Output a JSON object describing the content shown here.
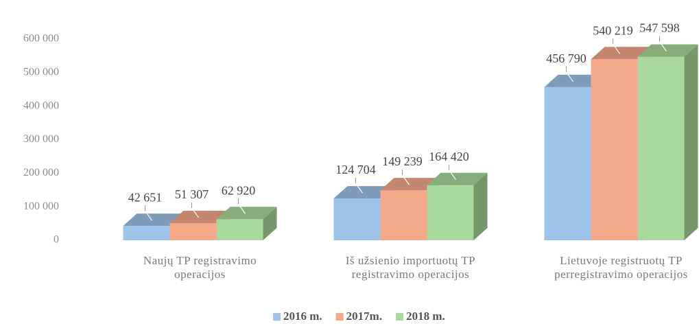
{
  "chart_data": {
    "type": "bar3d",
    "categories": [
      "Naujų TP registravimo operacijos",
      "Iš užsienio importuotų TP registravimo operacijos",
      "Lietuvoje registruotų TP perregistravimo operacijos"
    ],
    "series": [
      {
        "name": "2016 m.",
        "color": "#9ec3e8",
        "values": [
          42651,
          124704,
          456790
        ],
        "value_labels": [
          "42 651",
          "124 704",
          "456 790"
        ]
      },
      {
        "name": "2017m.",
        "color": "#f5a98a",
        "values": [
          51307,
          149239,
          540219
        ],
        "value_labels": [
          "51 307",
          "149 239",
          "540 219"
        ]
      },
      {
        "name": "2018 m.",
        "color": "#a8d89a",
        "values": [
          62920,
          164420,
          547598
        ],
        "value_labels": [
          "62 920",
          "164 420",
          "547 598"
        ]
      }
    ],
    "ylim": [
      0,
      600000
    ],
    "yticks": [
      0,
      {
        "value": 100000,
        "label": "100 000"
      },
      {
        "value": 200000,
        "label": "200 000"
      },
      {
        "value": 300000,
        "label": "300 000"
      },
      {
        "value": 400000,
        "label": "400 000"
      },
      {
        "value": 500000,
        "label": "500 000"
      },
      {
        "value": 600000,
        "label": "600 000"
      }
    ],
    "legend": "bottom"
  }
}
